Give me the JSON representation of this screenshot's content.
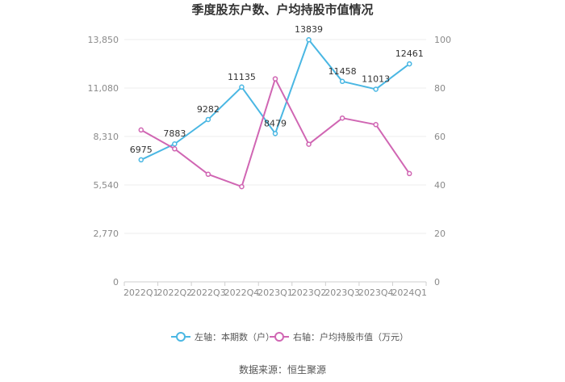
{
  "chart_data": {
    "type": "line",
    "title": "季度股东户数、户均持股市值情况",
    "categories": [
      "2022Q1",
      "2022Q2",
      "2022Q3",
      "2022Q4",
      "2023Q1",
      "2023Q2",
      "2023Q3",
      "2023Q4",
      "2024Q1"
    ],
    "left_axis": {
      "min": 0,
      "max": 13850,
      "ticks": [
        0,
        2770,
        5540,
        8310,
        11080,
        13850
      ],
      "tick_labels": [
        "0",
        "2,770",
        "5,540",
        "8,310",
        "11,080",
        "13,850"
      ]
    },
    "right_axis": {
      "min": 0,
      "max": 100,
      "ticks": [
        0,
        20,
        40,
        60,
        80,
        100
      ],
      "tick_labels": [
        "0",
        "20",
        "40",
        "60",
        "80",
        "100"
      ]
    },
    "grid": true,
    "legend_position": "bottom",
    "series": [
      {
        "name": "左轴：本期数（户）",
        "axis": "left",
        "color": "#4ab7e3",
        "values": [
          6975,
          7883,
          9282,
          11135,
          8479,
          13839,
          11458,
          11013,
          12461
        ],
        "labels": [
          "6975",
          "7883",
          "9282",
          "11135",
          "8479",
          "13839",
          "11458",
          "11013",
          "12461"
        ]
      },
      {
        "name": "右轴：户均持股市值（万元）",
        "axis": "right",
        "color": "#d066b3",
        "values": [
          62.7,
          54.9,
          44.4,
          39.3,
          83.8,
          56.8,
          67.6,
          64.9,
          44.7
        ]
      }
    ]
  },
  "source": "数据来源：恒生聚源"
}
